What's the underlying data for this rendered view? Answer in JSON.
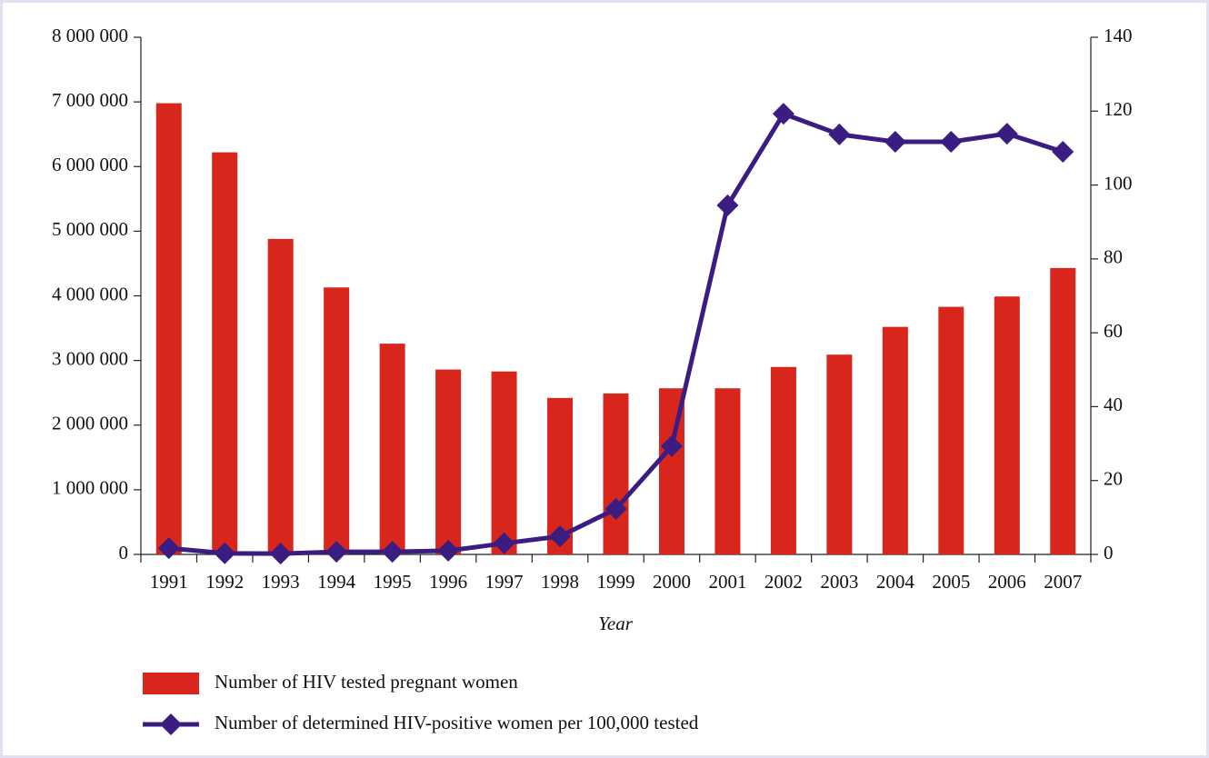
{
  "chart_data": {
    "type": "bar+line",
    "x_label": "Year",
    "categories": [
      "1991",
      "1992",
      "1993",
      "1994",
      "1995",
      "1996",
      "1997",
      "1998",
      "1999",
      "2000",
      "2001",
      "2002",
      "2003",
      "2004",
      "2005",
      "2006",
      "2007"
    ],
    "series": [
      {
        "name": "Number of HIV tested pregnant women",
        "type": "bar",
        "color": "#d8261c",
        "values": [
          6980000,
          6220000,
          4880000,
          4130000,
          3260000,
          2860000,
          2830000,
          2420000,
          2490000,
          2570000,
          2570000,
          2900000,
          3090000,
          3520000,
          3830000,
          3990000,
          4430000
        ]
      },
      {
        "name": "Number of determined HIV-positive women per 100,000 tested",
        "type": "line",
        "axis": "y2",
        "color": "#3b1c80",
        "values": [
          1.7,
          0.3,
          0.2,
          0.7,
          0.7,
          1,
          3,
          4.9,
          12.3,
          29.3,
          94.5,
          119.3,
          113.7,
          111.7,
          111.7,
          113.9,
          109
        ]
      }
    ],
    "ylim": [
      0,
      8000000
    ],
    "yticks": [
      {
        "value": 0,
        "label": "0"
      },
      {
        "value": 1000000,
        "label": "1 000 000"
      },
      {
        "value": 2000000,
        "label": "2 000 000"
      },
      {
        "value": 3000000,
        "label": "3 000 000"
      },
      {
        "value": 4000000,
        "label": "4 000 000"
      },
      {
        "value": 5000000,
        "label": "5 000 000"
      },
      {
        "value": 6000000,
        "label": "6 000 000"
      },
      {
        "value": 7000000,
        "label": "7 000 000"
      },
      {
        "value": 8000000,
        "label": "8 000 000"
      }
    ],
    "y2lim": [
      0,
      140
    ],
    "y2ticks": [
      0,
      20,
      40,
      60,
      80,
      100,
      120,
      140
    ],
    "legend": "bottom-left",
    "grid": false
  }
}
